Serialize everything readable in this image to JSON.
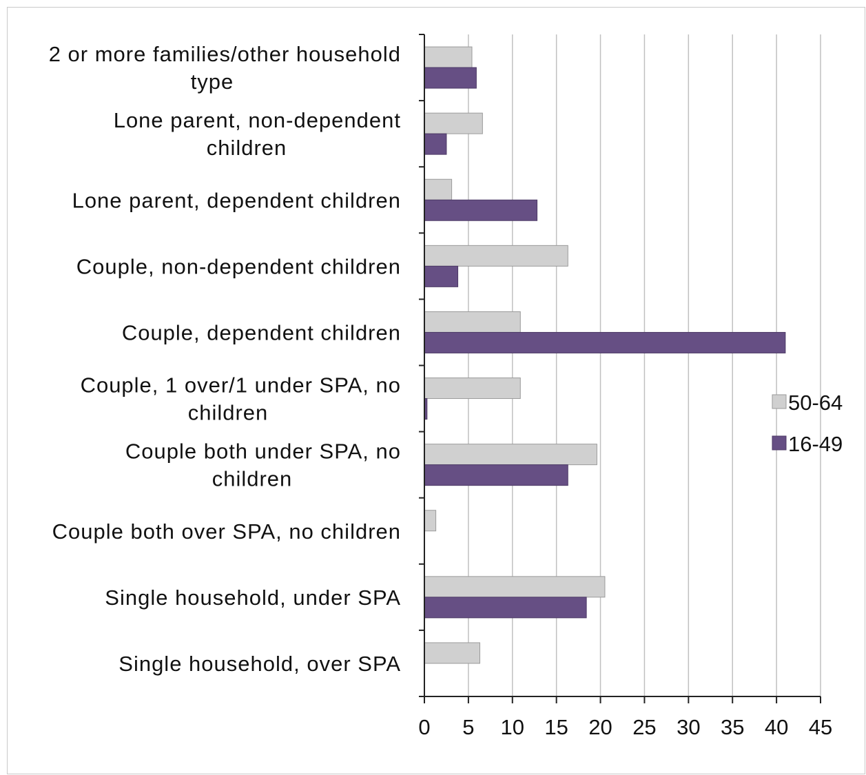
{
  "chart_data": {
    "type": "bar",
    "orientation": "horizontal",
    "title": "",
    "xlabel": "",
    "ylabel": "",
    "categories": [
      [
        "2 or more families/other household",
        "type"
      ],
      [
        "Lone parent, non-dependent",
        "children"
      ],
      [
        "Lone parent, dependent children"
      ],
      [
        "Couple, non-dependent children"
      ],
      [
        "Couple, dependent children"
      ],
      [
        "Couple, 1 over/1 under SPA, no",
        "children"
      ],
      [
        "Couple both under SPA, no",
        "children"
      ],
      [
        "Couple both over SPA, no children"
      ],
      [
        "Single household, under SPA"
      ],
      [
        "Single household, over SPA"
      ]
    ],
    "series": [
      {
        "name": "50-64",
        "color": "#d0d0d0",
        "stroke": "#9a9a9a",
        "values": [
          5.4,
          6.6,
          3.1,
          16.3,
          10.9,
          10.9,
          19.6,
          1.3,
          20.5,
          6.3
        ]
      },
      {
        "name": "16-49",
        "color": "#664f84",
        "stroke": "#4d3a66",
        "values": [
          5.9,
          2.5,
          12.8,
          3.8,
          41.0,
          0.3,
          16.3,
          0,
          18.4,
          0
        ]
      }
    ],
    "xlim": [
      0,
      45
    ],
    "xticks": [
      0,
      5,
      10,
      15,
      20,
      25,
      30,
      35,
      40,
      45
    ],
    "grid": true,
    "legend": "right",
    "legend_order": [
      "50-64",
      "16-49"
    ]
  }
}
